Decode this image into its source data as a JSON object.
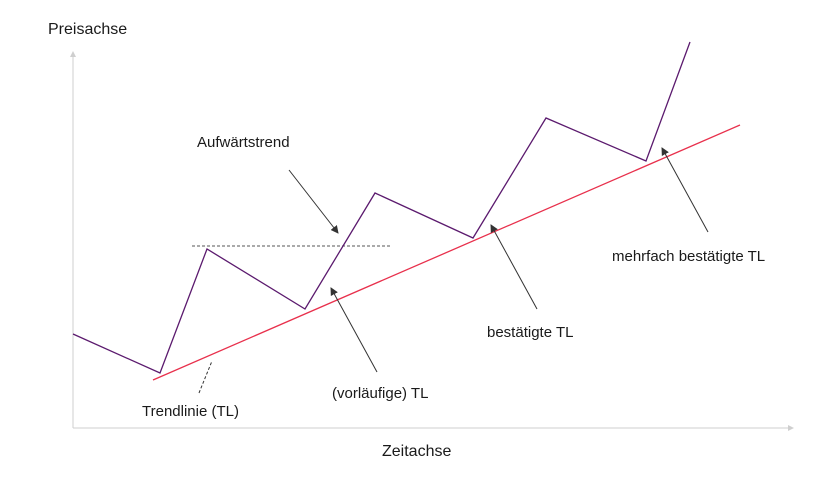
{
  "diagram": {
    "axis_y_label": "Preisachse",
    "axis_x_label": "Zeitachse",
    "labels": {
      "uptrend": "Aufwärtstrend",
      "trendline": "Trendlinie (TL)",
      "preliminary": "(vorläufige) TL",
      "confirmed": "bestätigte TL",
      "multiple_confirmed": "mehrfach bestätigte TL"
    },
    "colors": {
      "price_line": "#5b1a6e",
      "trend_line": "#e8304c",
      "axis": "#cfcfcf",
      "pointer": "#333333",
      "text": "#1a1a1a"
    }
  }
}
